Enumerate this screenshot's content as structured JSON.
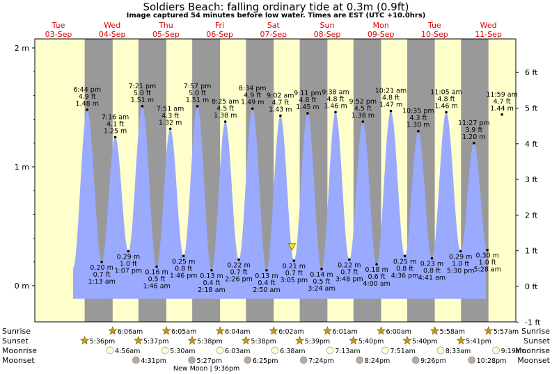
{
  "title": "Soldiers Beach: falling  ordinary tide at 0.3m (0.9ft)",
  "subtitle": "Image captured 54 minutes before low water. Times are EST (UTC +10.0hrs)",
  "colors": {
    "day": "#ffffcc",
    "night": "#999999",
    "water": "#99aaff",
    "header_text": "#dd0000",
    "sun_star": "#c8961e",
    "moon_rise": "#ffffcc",
    "moon_set": "#bbaa99",
    "current_marker": "#eeee00"
  },
  "days": [
    {
      "dow": "Tue",
      "date": "03-Sep"
    },
    {
      "dow": "Wed",
      "date": "04-Sep"
    },
    {
      "dow": "Thu",
      "date": "05-Sep"
    },
    {
      "dow": "Fri",
      "date": "06-Sep"
    },
    {
      "dow": "Sat",
      "date": "07-Sep"
    },
    {
      "dow": "Sun",
      "date": "08-Sep"
    },
    {
      "dow": "Mon",
      "date": "09-Sep"
    },
    {
      "dow": "Tue",
      "date": "10-Sep"
    },
    {
      "dow": "Wed",
      "date": "11-Sep"
    }
  ],
  "chart_data": {
    "type": "area",
    "title": "Soldiers Beach: falling  ordinary tide at 0.3m (0.9ft)",
    "y_left_ticks": [
      "0 m",
      "1 m",
      "2 m"
    ],
    "y_right_ticks": [
      "-1 ft",
      "0 ft",
      "1 ft",
      "2 ft",
      "3 ft",
      "4 ft",
      "5 ft",
      "6 ft"
    ],
    "ylim_m": [
      -0.33,
      2.05
    ],
    "x_start": "2024-09-03 00:00",
    "tides": [
      {
        "time": "6:44 pm",
        "t": "03-Sep 18:44",
        "m": 1.48,
        "m_label": "1.48 m",
        "ft": "4.9 ft",
        "type": "high"
      },
      {
        "time": "1:13 am",
        "t": "04-Sep 01:13",
        "m": 0.2,
        "m_label": "0.20 m",
        "ft": "0.7 ft",
        "type": "low"
      },
      {
        "time": "7:16 am",
        "t": "04-Sep 07:16",
        "m": 1.25,
        "m_label": "1.25 m",
        "ft": "4.1 ft",
        "type": "high"
      },
      {
        "time": "1:07 pm",
        "t": "04-Sep 13:07",
        "m": 0.29,
        "m_label": "0.29 m",
        "ft": "1.0 ft",
        "type": "low"
      },
      {
        "time": "7:21 pm",
        "t": "04-Sep 19:21",
        "m": 1.51,
        "m_label": "1.51 m",
        "ft": "5.0 ft",
        "type": "high"
      },
      {
        "time": "1:46 am",
        "t": "05-Sep 01:46",
        "m": 0.16,
        "m_label": "0.16 m",
        "ft": "0.5 ft",
        "type": "low"
      },
      {
        "time": "7:51 am",
        "t": "05-Sep 07:51",
        "m": 1.32,
        "m_label": "1.32 m",
        "ft": "4.3 ft",
        "type": "high"
      },
      {
        "time": "1:46 pm",
        "t": "05-Sep 13:46",
        "m": 0.25,
        "m_label": "0.25 m",
        "ft": "0.8 ft",
        "type": "low"
      },
      {
        "time": "7:57 pm",
        "t": "05-Sep 19:57",
        "m": 1.51,
        "m_label": "1.51 m",
        "ft": "5.0 ft",
        "type": "high"
      },
      {
        "time": "2:18 am",
        "t": "06-Sep 02:18",
        "m": 0.13,
        "m_label": "0.13 m",
        "ft": "0.4 ft",
        "type": "low"
      },
      {
        "time": "8:25 am",
        "t": "06-Sep 08:25",
        "m": 1.38,
        "m_label": "1.38 m",
        "ft": "4.5 ft",
        "type": "high"
      },
      {
        "time": "2:26 pm",
        "t": "06-Sep 14:26",
        "m": 0.22,
        "m_label": "0.22 m",
        "ft": "0.7 ft",
        "type": "low"
      },
      {
        "time": "8:34 pm",
        "t": "06-Sep 20:34",
        "m": 1.49,
        "m_label": "1.49 m",
        "ft": "4.9 ft",
        "type": "high"
      },
      {
        "time": "2:50 am",
        "t": "07-Sep 02:50",
        "m": 0.13,
        "m_label": "0.13 m",
        "ft": "0.4 ft",
        "type": "low"
      },
      {
        "time": "9:02 am",
        "t": "07-Sep 09:02",
        "m": 1.43,
        "m_label": "1.43 m",
        "ft": "4.7 ft",
        "type": "high"
      },
      {
        "time": "3:05 pm",
        "t": "07-Sep 15:05",
        "m": 0.21,
        "m_label": "0.21 m",
        "ft": "0.7 ft",
        "type": "low"
      },
      {
        "time": "9:11 pm",
        "t": "07-Sep 21:11",
        "m": 1.45,
        "m_label": "1.45 m",
        "ft": "4.8 ft",
        "type": "high"
      },
      {
        "time": "3:24 am",
        "t": "08-Sep 03:24",
        "m": 0.14,
        "m_label": "0.14 m",
        "ft": "0.5 ft",
        "type": "low"
      },
      {
        "time": "9:38 am",
        "t": "08-Sep 09:38",
        "m": 1.46,
        "m_label": "1.46 m",
        "ft": "4.8 ft",
        "type": "high"
      },
      {
        "time": "3:48 pm",
        "t": "08-Sep 15:48",
        "m": 0.22,
        "m_label": "0.22 m",
        "ft": "0.7 ft",
        "type": "low"
      },
      {
        "time": "9:52 pm",
        "t": "08-Sep 21:52",
        "m": 1.38,
        "m_label": "1.38 m",
        "ft": "4.5 ft",
        "type": "high"
      },
      {
        "time": "4:00 am",
        "t": "09-Sep 04:00",
        "m": 0.18,
        "m_label": "0.18 m",
        "ft": "0.6 ft",
        "type": "low"
      },
      {
        "time": "10:21 am",
        "t": "09-Sep 10:21",
        "m": 1.47,
        "m_label": "1.47 m",
        "ft": "4.8 ft",
        "type": "high"
      },
      {
        "time": "4:36 pm",
        "t": "09-Sep 16:36",
        "m": 0.25,
        "m_label": "0.25 m",
        "ft": "0.8 ft",
        "type": "low"
      },
      {
        "time": "10:35 pm",
        "t": "09-Sep 22:35",
        "m": 1.3,
        "m_label": "1.30 m",
        "ft": "4.3 ft",
        "type": "high"
      },
      {
        "time": "4:41 am",
        "t": "10-Sep 04:41",
        "m": 0.23,
        "m_label": "0.23 m",
        "ft": "0.8 ft",
        "type": "low"
      },
      {
        "time": "11:05 am",
        "t": "10-Sep 11:05",
        "m": 1.46,
        "m_label": "1.46 m",
        "ft": "4.8 ft",
        "type": "high"
      },
      {
        "time": "5:30 pm",
        "t": "10-Sep 17:30",
        "m": 0.29,
        "m_label": "0.29 m",
        "ft": "1.0 ft",
        "type": "low"
      },
      {
        "time": "11:27 pm",
        "t": "10-Sep 23:27",
        "m": 1.2,
        "m_label": "1.20 m",
        "ft": "3.9 ft",
        "type": "high"
      },
      {
        "time": "5:28 am",
        "t": "11-Sep 05:28",
        "m": 0.3,
        "m_label": "0.30 m",
        "ft": "1.0 ft",
        "type": "low"
      },
      {
        "time": "11:59 am",
        "t": "11-Sep 11:59",
        "m": 1.44,
        "m_label": "1.44 m",
        "ft": "4.7 ft",
        "type": "high"
      }
    ],
    "current": {
      "t": "07-Sep 14:11",
      "m": 0.3
    }
  },
  "sunrise_label": "Sunrise",
  "sunset_label": "Sunset",
  "moonrise_label": "Moonrise",
  "moonset_label": "Moonset",
  "sunrise": [
    {
      "t": "04-Sep 06:06",
      "text": "6:06am"
    },
    {
      "t": "05-Sep 06:05",
      "text": "6:05am"
    },
    {
      "t": "06-Sep 06:04",
      "text": "6:04am"
    },
    {
      "t": "07-Sep 06:02",
      "text": "6:02am"
    },
    {
      "t": "08-Sep 06:01",
      "text": "6:01am"
    },
    {
      "t": "09-Sep 06:00",
      "text": "6:00am"
    },
    {
      "t": "10-Sep 05:58",
      "text": "5:58am"
    },
    {
      "t": "11-Sep 05:57",
      "text": "5:57am"
    }
  ],
  "sunset": [
    {
      "t": "03-Sep 17:36",
      "text": "5:36pm"
    },
    {
      "t": "04-Sep 17:37",
      "text": "5:37pm"
    },
    {
      "t": "05-Sep 17:38",
      "text": "5:38pm"
    },
    {
      "t": "06-Sep 17:38",
      "text": "5:38pm"
    },
    {
      "t": "07-Sep 17:39",
      "text": "5:39pm"
    },
    {
      "t": "08-Sep 17:40",
      "text": "5:40pm"
    },
    {
      "t": "09-Sep 17:40",
      "text": "5:40pm"
    },
    {
      "t": "10-Sep 17:41",
      "text": "5:41pm"
    }
  ],
  "moonrise": [
    {
      "t": "04-Sep 04:56",
      "text": "4:56am"
    },
    {
      "t": "05-Sep 05:30",
      "text": "5:30am"
    },
    {
      "t": "06-Sep 06:03",
      "text": "6:03am"
    },
    {
      "t": "07-Sep 06:38",
      "text": "6:38am"
    },
    {
      "t": "08-Sep 07:13",
      "text": "7:13am"
    },
    {
      "t": "09-Sep 07:51",
      "text": "7:51am"
    },
    {
      "t": "10-Sep 08:33",
      "text": "8:33am"
    },
    {
      "t": "11-Sep 09:19",
      "text": "9:19am"
    }
  ],
  "moonset": [
    {
      "t": "04-Sep 16:31",
      "text": "4:31pm"
    },
    {
      "t": "05-Sep 17:27",
      "text": "5:27pm"
    },
    {
      "t": "06-Sep 18:25",
      "text": "6:25pm"
    },
    {
      "t": "07-Sep 19:24",
      "text": "7:24pm"
    },
    {
      "t": "08-Sep 20:24",
      "text": "8:24pm"
    },
    {
      "t": "09-Sep 21:26",
      "text": "9:26pm"
    },
    {
      "t": "10-Sep 22:28",
      "text": "10:28pm"
    }
  ],
  "moon_phase": {
    "t": "05-Sep 21:36",
    "text": "New Moon | 9:36pm"
  },
  "night_spans": [
    [
      "03-Sep 17:36",
      "04-Sep 06:06"
    ],
    [
      "04-Sep 17:37",
      "05-Sep 06:05"
    ],
    [
      "05-Sep 17:38",
      "06-Sep 06:04"
    ],
    [
      "06-Sep 17:38",
      "07-Sep 06:02"
    ],
    [
      "07-Sep 17:39",
      "08-Sep 06:01"
    ],
    [
      "08-Sep 17:40",
      "09-Sep 06:00"
    ],
    [
      "09-Sep 17:40",
      "10-Sep 05:58"
    ],
    [
      "10-Sep 17:41",
      "11-Sep 05:57"
    ]
  ]
}
